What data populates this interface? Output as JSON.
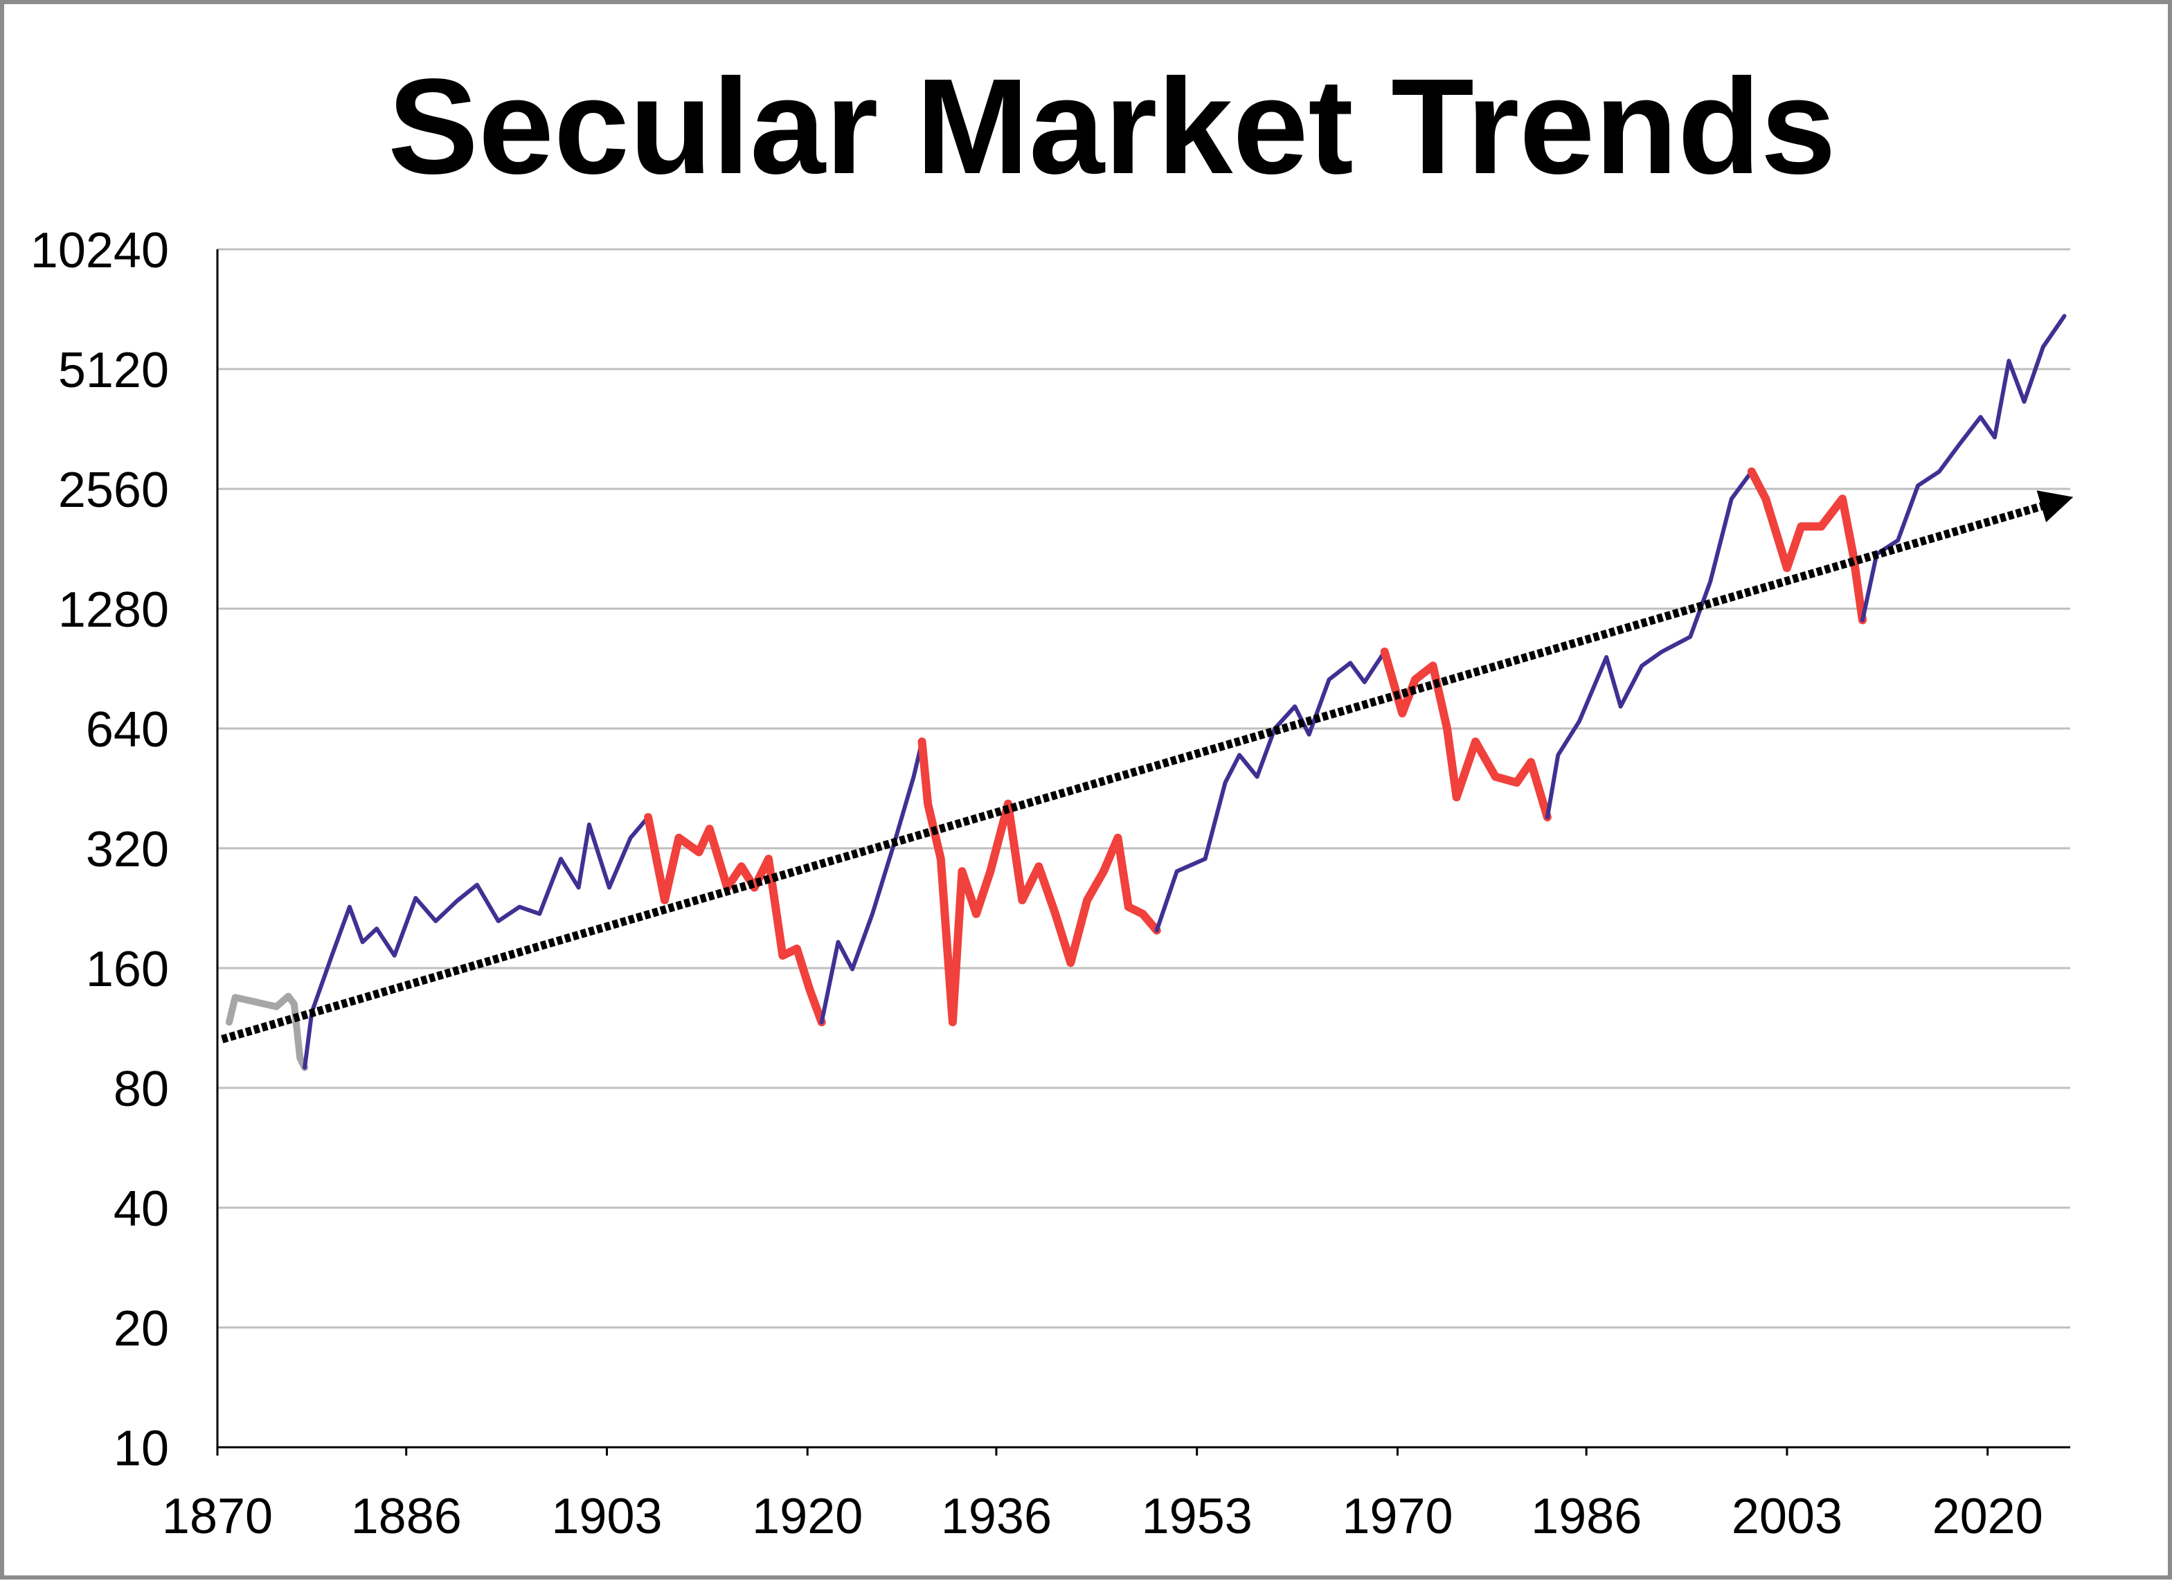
{
  "chart_data": {
    "type": "line",
    "title": "Secular Market Trends",
    "log_scale": true,
    "grid": true,
    "xlim": [
      1870,
      2027
    ],
    "xticks": [
      1870,
      1886,
      1903,
      1920,
      1936,
      1953,
      1970,
      1986,
      2003,
      2020
    ],
    "ylim": [
      10,
      10240
    ],
    "yticks": [
      10,
      20,
      40,
      80,
      160,
      320,
      640,
      1280,
      2560,
      5120,
      10240
    ],
    "series": [
      {
        "color": "#a6a6a6",
        "line_width": 10,
        "x": [
          1871,
          1871.5,
          1873,
          1875,
          1876,
          1876.5,
          1877,
          1877.4
        ],
        "values": [
          117,
          135,
          132,
          128,
          136,
          130,
          95,
          90
        ]
      },
      {
        "color": "#3f3193",
        "line_width": 6,
        "x": [
          1877.4,
          1878,
          1879.7,
          1881.2,
          1882.3,
          1883.5,
          1885,
          1886.8,
          1888.5,
          1890.3,
          1892,
          1893.8,
          1895.6,
          1897.3,
          1899.1,
          1900.6,
          1901.5,
          1903.2,
          1905,
          1906.5
        ],
        "values": [
          90,
          124,
          172,
          228,
          186,
          201,
          172,
          240,
          210,
          236,
          259,
          210,
          228,
          219,
          301,
          255,
          367,
          255,
          340,
          383
        ]
      },
      {
        "color": "#f0413c",
        "line_width": 12,
        "x": [
          1906.5,
          1907.9,
          1909.1,
          1910.8,
          1911.7,
          1913.2,
          1914.4,
          1915.5,
          1916.7,
          1917.9,
          1919.1,
          1920.2,
          1921.2
        ],
        "values": [
          383,
          237,
          340,
          313,
          358,
          255,
          288,
          255,
          301,
          172,
          179,
          141,
          117
        ]
      },
      {
        "color": "#3f3193",
        "line_width": 6,
        "x": [
          1921.2,
          1922.6,
          1923.8,
          1925.5,
          1927.3,
          1929,
          1929.7
        ],
        "values": [
          117,
          186,
          159,
          219,
          326,
          484,
          593
        ]
      },
      {
        "color": "#f0413c",
        "line_width": 12,
        "x": [
          1929.7,
          1930.2,
          1931.3,
          1932.3,
          1933.1,
          1934.3,
          1935.5,
          1937,
          1938.2,
          1939.6,
          1941,
          1942.3,
          1943.7,
          1945.1,
          1946.3,
          1947.2,
          1948.4,
          1949.6
        ],
        "values": [
          593,
          414,
          301,
          117,
          280,
          219,
          280,
          414,
          237,
          288,
          219,
          165,
          237,
          280,
          340,
          228,
          219,
          199
        ]
      },
      {
        "color": "#3f3193",
        "line_width": 6,
        "x": [
          1949.6,
          1951.3,
          1953.7,
          1955.4,
          1956.6,
          1958.1,
          1959.6,
          1961.3,
          1962.5,
          1964.2,
          1966,
          1967.2,
          1968.9
        ],
        "values": [
          199,
          280,
          301,
          468,
          549,
          484,
          640,
          727,
          618,
          850,
          935,
          837,
          998
        ]
      },
      {
        "color": "#f0413c",
        "line_width": 12,
        "x": [
          1968.9,
          1970.4,
          1971.5,
          1973,
          1974.2,
          1975,
          1976.6,
          1978.3,
          1980.1,
          1981.3,
          1982.7
        ],
        "values": [
          998,
          699,
          850,
          920,
          640,
          430,
          593,
          484,
          468,
          527,
          383
        ]
      },
      {
        "color": "#3f3193",
        "line_width": 6,
        "x": [
          1982.7,
          1983.6,
          1985.4,
          1987.7,
          1988.9,
          1990.7,
          1992.4,
          1994.8,
          1996.5,
          1998.3,
          2000
        ],
        "values": [
          383,
          549,
          667,
          967,
          727,
          920,
          998,
          1088,
          1495,
          2417,
          2830
        ]
      },
      {
        "color": "#f0413c",
        "line_width": 12,
        "x": [
          2000,
          2001.2,
          2003,
          2004.2,
          2005.9,
          2007.7,
          2008.6,
          2009.4
        ],
        "values": [
          2830,
          2417,
          1620,
          2060,
          2060,
          2417,
          1755,
          1198
        ]
      },
      {
        "color": "#3f3193",
        "line_width": 6,
        "x": [
          2009.4,
          2010.6,
          2012.4,
          2014.1,
          2015.9,
          2017.6,
          2019.4,
          2020.6,
          2021.8,
          2023.1,
          2024.7,
          2026.5
        ],
        "values": [
          1198,
          1755,
          1900,
          2610,
          2830,
          3310,
          3880,
          3450,
          5370,
          4240,
          5820,
          6960
        ]
      }
    ],
    "trend": {
      "color": "#000000",
      "style": "dotted-arrow",
      "x": [
        1870.4,
        2025.9
      ],
      "values": [
        106,
        2377
      ]
    }
  }
}
